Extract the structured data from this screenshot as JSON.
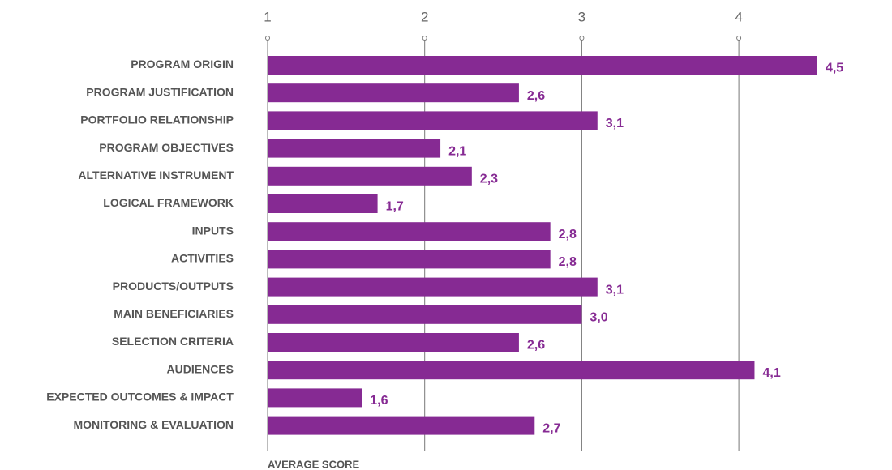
{
  "chart_data": {
    "type": "bar",
    "orientation": "horizontal",
    "x_label": "AVERAGE SCORE",
    "categories": [
      "PROGRAM ORIGIN",
      "PROGRAM JUSTIFICATION",
      "PORTFOLIO RELATIONSHIP",
      "PROGRAM OBJECTIVES",
      "ALTERNATIVE INSTRUMENT",
      "LOGICAL FRAMEWORK",
      "INPUTS",
      "ACTIVITIES",
      "PRODUCTS/OUTPUTS",
      "MAIN BENEFICIARIES",
      "SELECTION CRITERIA",
      "AUDIENCES",
      "EXPECTED OUTCOMES & IMPACT",
      "MONITORING & EVALUATION"
    ],
    "values": [
      4.5,
      2.6,
      3.1,
      2.1,
      2.3,
      1.7,
      2.8,
      2.8,
      3.1,
      3.0,
      2.6,
      4.1,
      1.6,
      2.7
    ],
    "value_labels": [
      "4,5",
      "2,6",
      "3,1",
      "2,1",
      "2,3",
      "1,7",
      "2,8",
      "2,8",
      "3,1",
      "3,0",
      "2,6",
      "4,1",
      "1,6",
      "2,7"
    ],
    "color": "#862a93",
    "xlim": [
      1,
      5
    ],
    "xticks": [
      1,
      2,
      3,
      4,
      5
    ],
    "grid": true
  }
}
